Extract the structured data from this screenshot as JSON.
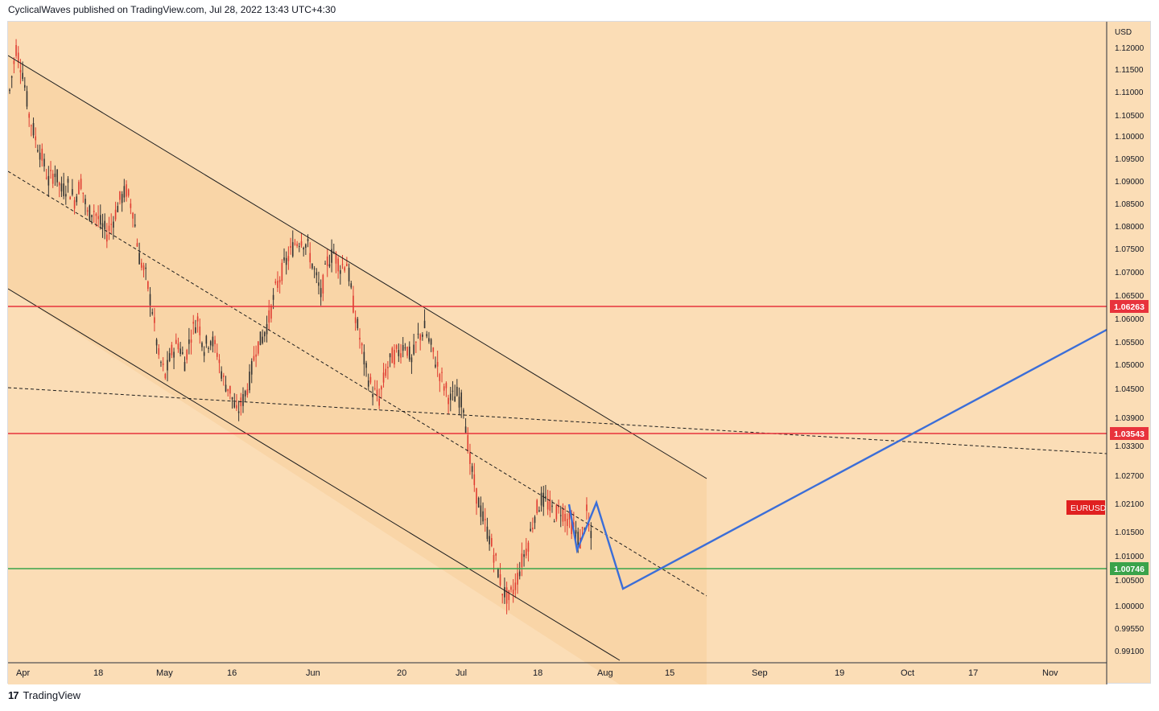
{
  "header": {
    "publish_line": "CyclicalWaves published on TradingView.com, Jul 28, 2022 13:43 UTC+4:30"
  },
  "footer": {
    "logo": "17",
    "brand": "TradingView"
  },
  "chart_data": {
    "type": "candlestick",
    "symbol": "EURUSD",
    "currency": "USD",
    "colors": {
      "background": "#fbddb6",
      "channel_fill": "#f8d3a4",
      "candles": "#e03c31",
      "resistance_line": "#e8333c",
      "support_line": "#3aa34a",
      "projection": "#3b6ed8",
      "channel_lines": "#1e1e1e"
    },
    "y_axis": {
      "ticks": [
        "1.12000",
        "1.11500",
        "1.11000",
        "1.10500",
        "1.10000",
        "1.09500",
        "1.09000",
        "1.08500",
        "1.08000",
        "1.07500",
        "1.07000",
        "1.06500",
        "1.06000",
        "1.05500",
        "1.05000",
        "1.04500",
        "1.03900",
        "1.03300",
        "1.02700",
        "1.02100",
        "1.01500",
        "1.01000",
        "1.00500",
        "1.00000",
        "0.99550",
        "0.99100"
      ],
      "tick_values": [
        1.12,
        1.115,
        1.11,
        1.105,
        1.1,
        1.095,
        1.09,
        1.085,
        1.08,
        1.075,
        1.07,
        1.065,
        1.06,
        1.055,
        1.05,
        1.045,
        1.039,
        1.033,
        1.027,
        1.021,
        1.015,
        1.01,
        1.005,
        1.0,
        0.9955,
        0.991
      ]
    },
    "x_axis": {
      "ticks": [
        "Apr",
        "18",
        "May",
        "16",
        "Jun",
        "20",
        "Jul",
        "18",
        "Aug",
        "15",
        "Sep",
        "19",
        "Oct",
        "17",
        "Nov"
      ]
    },
    "horizontal_levels": [
      {
        "value": 1.06263,
        "label": "1.06263",
        "color": "#e8333c"
      },
      {
        "value": 1.03543,
        "label": "1.03543",
        "color": "#e8333c"
      },
      {
        "value": 1.00746,
        "label": "1.00746",
        "color": "#3aa34a"
      }
    ],
    "symbol_label": "EURUSD",
    "ohlc_path": [
      1.108,
      1.117,
      1.112,
      1.103,
      1.098,
      1.094,
      1.089,
      1.091,
      1.087,
      1.088,
      1.085,
      1.089,
      1.082,
      1.083,
      1.08,
      1.078,
      1.081,
      1.085,
      1.087,
      1.083,
      1.073,
      1.069,
      1.062,
      1.052,
      1.048,
      1.053,
      1.055,
      1.051,
      1.057,
      1.06,
      1.054,
      1.056,
      1.053,
      1.047,
      1.045,
      1.04,
      1.043,
      1.047,
      1.054,
      1.056,
      1.06,
      1.066,
      1.07,
      1.073,
      1.076,
      1.077,
      1.075,
      1.07,
      1.065,
      1.072,
      1.074,
      1.071,
      1.072,
      1.063,
      1.056,
      1.049,
      1.045,
      1.043,
      1.049,
      1.052,
      1.053,
      1.055,
      1.051,
      1.056,
      1.058,
      1.054,
      1.05,
      1.046,
      1.043,
      1.044,
      1.042,
      1.03,
      1.023,
      1.018,
      1.014,
      1.009,
      1.003,
      1.001,
      1.004,
      1.009,
      1.013,
      1.019,
      1.022,
      1.021,
      1.019,
      1.02,
      1.018,
      1.016,
      1.013,
      1.019,
      1.011
    ]
  }
}
